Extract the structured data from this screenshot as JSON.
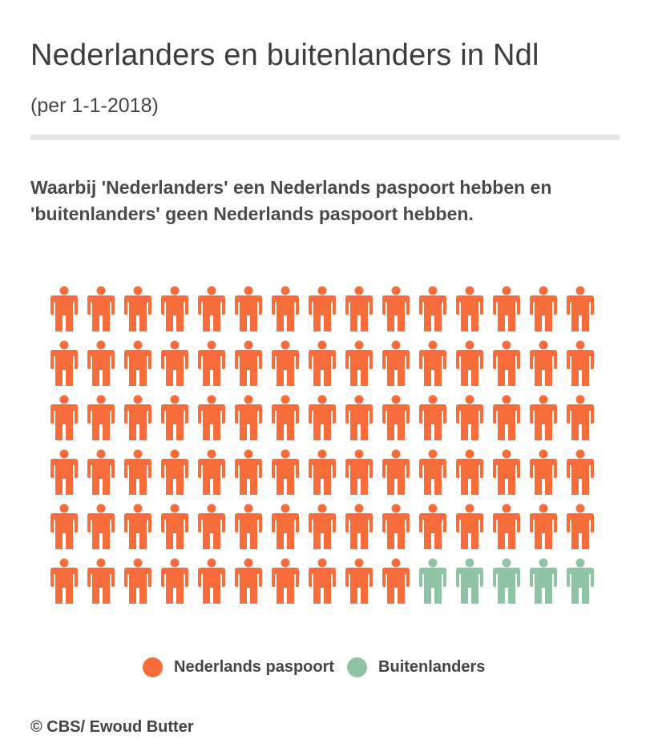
{
  "header": {
    "title": "Nederlanders en buitenlanders in Ndl",
    "subtitle": "(per 1-1-2018)"
  },
  "description": "Waarbij 'Nederlanders' een Nederlands paspoort hebben en 'buitenlanders' geen Nederlands paspoort hebben.",
  "legend": {
    "items": [
      {
        "label": "Nederlands paspoort",
        "color": "#f66d3b"
      },
      {
        "label": "Buitenlanders",
        "color": "#8ec3a4"
      }
    ]
  },
  "credit": "© CBS/ Ewoud Butter",
  "icon": "person-icon",
  "chart_data": {
    "type": "waffle",
    "total_icons": 90,
    "rows": 6,
    "columns": 15,
    "series": [
      {
        "name": "Nederlands paspoort",
        "values": [
          85
        ],
        "color": "#f66d3b"
      },
      {
        "name": "Buitenlanders",
        "values": [
          5
        ],
        "color": "#8ec3a4"
      }
    ]
  }
}
